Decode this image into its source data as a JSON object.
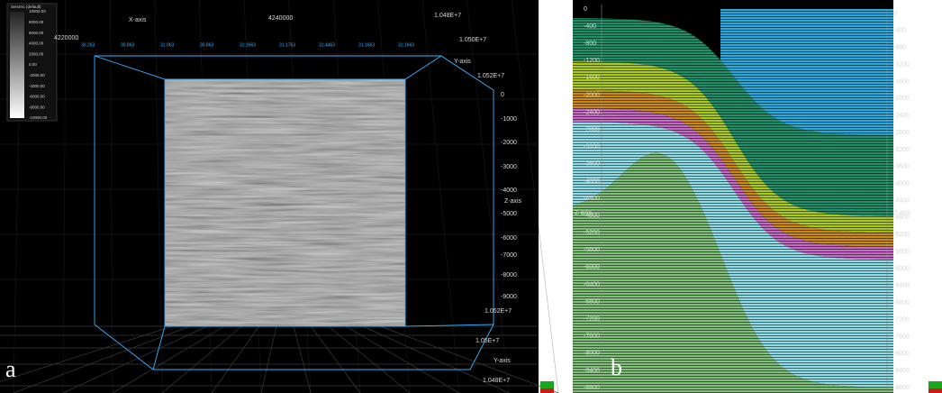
{
  "panel_a": {
    "label": "a",
    "legend": {
      "title": "Seismic (default)",
      "values": [
        "10000.00",
        "8000.00",
        "6000.00",
        "4000.00",
        "2000.00",
        "0.00",
        "-2000.00",
        "-4000.00",
        "-6000.00",
        "-8000.00",
        "-10000.00"
      ]
    },
    "x_axis": {
      "title": "X-axis",
      "ticks": [
        "4220000",
        "4240000"
      ]
    },
    "y_axis": {
      "title": "Y-axis",
      "top_ticks": [
        "1.048E+7",
        "1.050E+7",
        "1.052E+7"
      ],
      "bottom_ticks": [
        "1.052E+7",
        "1.05E+7",
        "1.048E+7"
      ]
    },
    "z_axis": {
      "title": "Z-axis",
      "ticks": [
        "0",
        "-1000",
        "-2000",
        "-3000",
        "-4000",
        "-5000",
        "-6000",
        "-7000",
        "-8000",
        "-9000"
      ]
    },
    "box_labels": [
      "30.263",
      "30.863",
      "31.063",
      "30.863",
      "31.1663",
      "31.1763",
      "31.4463",
      "31.1663",
      "31.1663"
    ]
  },
  "panel_b": {
    "label": "b",
    "z_axis": {
      "title": "Z-axis",
      "ticks": [
        "0",
        "-400",
        "-800",
        "-1200",
        "-1600",
        "-2000",
        "-2400",
        "-2800",
        "-3200",
        "-3600",
        "-4000",
        "-4400",
        "-4800",
        "-5200",
        "-5600",
        "-6000",
        "-6400",
        "-6800",
        "-7200",
        "-7600",
        "-8000",
        "-8400",
        "-8800"
      ]
    }
  }
}
